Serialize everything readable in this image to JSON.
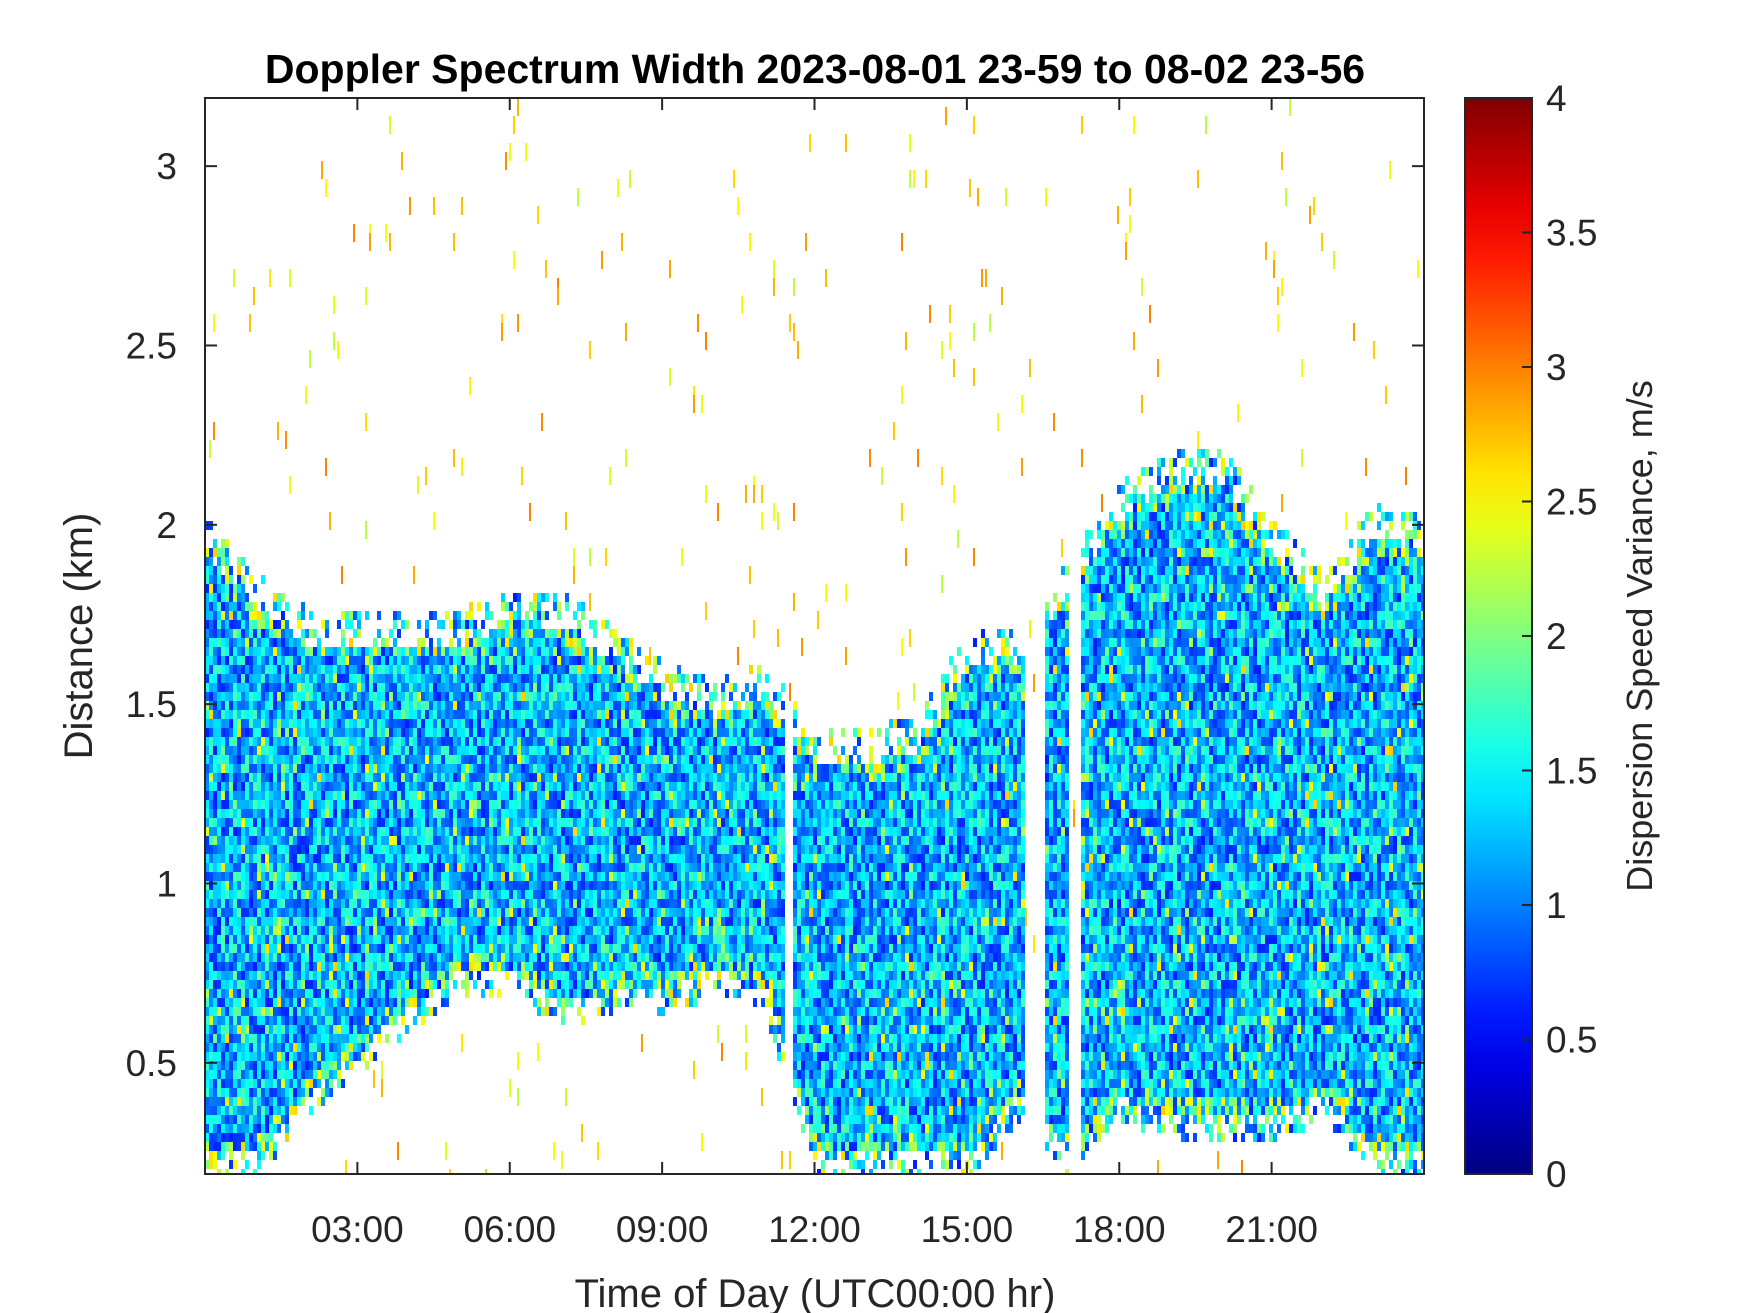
{
  "chart_data": {
    "type": "heatmap",
    "title": "Doppler Spectrum Width 2023-08-01 23-59 to 08-02 23-56",
    "xlabel": "Time of Day (UTC00:00 hr)",
    "ylabel": "Distance (km)",
    "xlim": [
      0,
      24
    ],
    "ylim": [
      0.19,
      3.19
    ],
    "x_ticks": [
      3,
      6,
      9,
      12,
      15,
      18,
      21
    ],
    "x_tick_labels": [
      "03:00",
      "06:00",
      "09:00",
      "12:00",
      "15:00",
      "18:00",
      "21:00"
    ],
    "y_ticks": [
      0.5,
      1,
      1.5,
      2,
      2.5,
      3
    ],
    "y_tick_labels": [
      "0.5",
      "1",
      "1.5",
      "2",
      "2.5",
      "3"
    ],
    "colorbar": {
      "label": "Dispersion Speed Variance, m/s",
      "range": [
        0,
        4
      ],
      "ticks": [
        0,
        0.5,
        1,
        1.5,
        2,
        2.5,
        3,
        3.5,
        4
      ],
      "tick_labels": [
        "0",
        "0.5",
        "1",
        "1.5",
        "2",
        "2.5",
        "3",
        "3.5",
        "4"
      ],
      "colormap": "jet"
    },
    "grid": false,
    "typical_value_range": [
      0.6,
      1.8
    ],
    "signal_envelope": [
      {
        "time_hr": 0.0,
        "bottom_km": 0.19,
        "top_km": 2.0
      },
      {
        "time_hr": 1.0,
        "bottom_km": 0.19,
        "top_km": 1.85
      },
      {
        "time_hr": 2.0,
        "bottom_km": 0.35,
        "top_km": 1.75
      },
      {
        "time_hr": 3.0,
        "bottom_km": 0.48,
        "top_km": 1.75
      },
      {
        "time_hr": 4.0,
        "bottom_km": 0.6,
        "top_km": 1.75
      },
      {
        "time_hr": 5.0,
        "bottom_km": 0.7,
        "top_km": 1.75
      },
      {
        "time_hr": 6.0,
        "bottom_km": 0.7,
        "top_km": 1.8
      },
      {
        "time_hr": 7.0,
        "bottom_km": 0.6,
        "top_km": 1.8
      },
      {
        "time_hr": 8.0,
        "bottom_km": 0.65,
        "top_km": 1.7
      },
      {
        "time_hr": 9.0,
        "bottom_km": 0.65,
        "top_km": 1.6
      },
      {
        "time_hr": 10.0,
        "bottom_km": 0.7,
        "top_km": 1.55
      },
      {
        "time_hr": 11.0,
        "bottom_km": 0.65,
        "top_km": 1.6
      },
      {
        "time_hr": 12.0,
        "bottom_km": 0.19,
        "top_km": 1.42
      },
      {
        "time_hr": 13.0,
        "bottom_km": 0.19,
        "top_km": 1.42
      },
      {
        "time_hr": 14.0,
        "bottom_km": 0.19,
        "top_km": 1.45
      },
      {
        "time_hr": 15.0,
        "bottom_km": 0.19,
        "top_km": 1.7
      },
      {
        "time_hr": 16.0,
        "bottom_km": 0.35,
        "top_km": 1.7
      },
      {
        "time_hr": 17.0,
        "bottom_km": 0.19,
        "top_km": 1.9
      },
      {
        "time_hr": 18.0,
        "bottom_km": 0.35,
        "top_km": 2.1
      },
      {
        "time_hr": 19.0,
        "bottom_km": 0.3,
        "top_km": 2.2
      },
      {
        "time_hr": 20.0,
        "bottom_km": 0.3,
        "top_km": 2.2
      },
      {
        "time_hr": 21.0,
        "bottom_km": 0.3,
        "top_km": 2.0
      },
      {
        "time_hr": 22.0,
        "bottom_km": 0.35,
        "top_km": 1.85
      },
      {
        "time_hr": 23.0,
        "bottom_km": 0.19,
        "top_km": 2.05
      },
      {
        "time_hr": 24.0,
        "bottom_km": 0.19,
        "top_km": 2.0
      }
    ],
    "data_gaps": [
      {
        "from_hr": 11.35,
        "to_hr": 11.5
      },
      {
        "from_hr": 16.1,
        "to_hr": 16.5
      },
      {
        "from_hr": 17.0,
        "to_hr": 17.2
      }
    ]
  }
}
